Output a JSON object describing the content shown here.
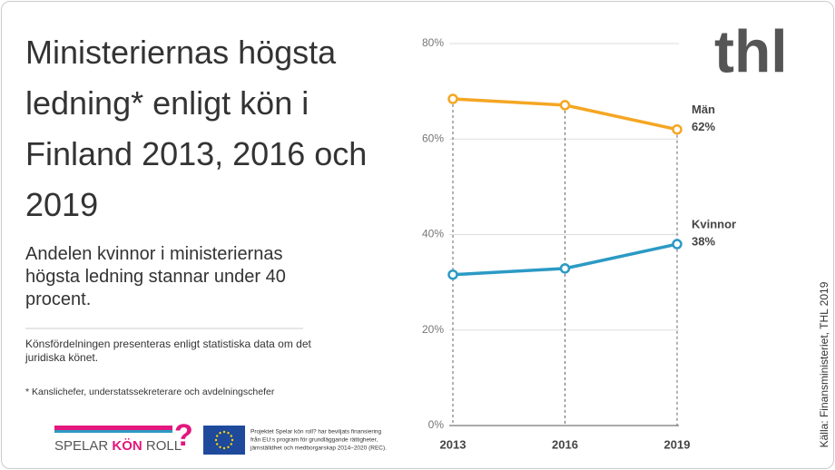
{
  "chart_data": {
    "type": "line",
    "categories": [
      "2013",
      "2016",
      "2019"
    ],
    "series": [
      {
        "name": "Män",
        "color": "#f5a623",
        "values": [
          68.4,
          67.1,
          62
        ],
        "value_labels": [
          null,
          null,
          "62%"
        ]
      },
      {
        "name": "Kvinnor",
        "color": "#2b9ac4",
        "values": [
          31.6,
          32.9,
          38
        ],
        "value_labels": [
          null,
          null,
          "38%"
        ]
      }
    ],
    "ylim": [
      0,
      80
    ],
    "yticks": [
      {
        "value": 0,
        "label": "0%"
      },
      {
        "value": 20,
        "label": "20%"
      },
      {
        "value": 40,
        "label": "40%"
      },
      {
        "value": 60,
        "label": "60%"
      },
      {
        "value": 80,
        "label": "80%"
      }
    ],
    "grid": true
  },
  "text": {
    "title": "Ministeriernas högsta ledning* enligt kön i Finland 2013, 2016 och 2019",
    "subtitle": "Andelen kvinnor i ministeriernas högsta ledning stannar under 40 procent.",
    "note": "Könsfördelningen presenteras enligt statistiska data om det juridiska könet.",
    "footnote": "* Kanslichefer, understatssekreterare och avdelningschefer",
    "source": "Källa: Finansministeriet, THL 2019",
    "logo": "thl",
    "project_logo": [
      "SPELAR",
      "KÖN",
      "ROLL",
      "?"
    ],
    "eu_text": [
      "Projektet Spelar kön roll? har beviljats finansiering",
      "från EU:s program för grundläggande rättigheter,",
      "jämställdhet och medborgarskap 2014–2020 (REC)."
    ]
  }
}
